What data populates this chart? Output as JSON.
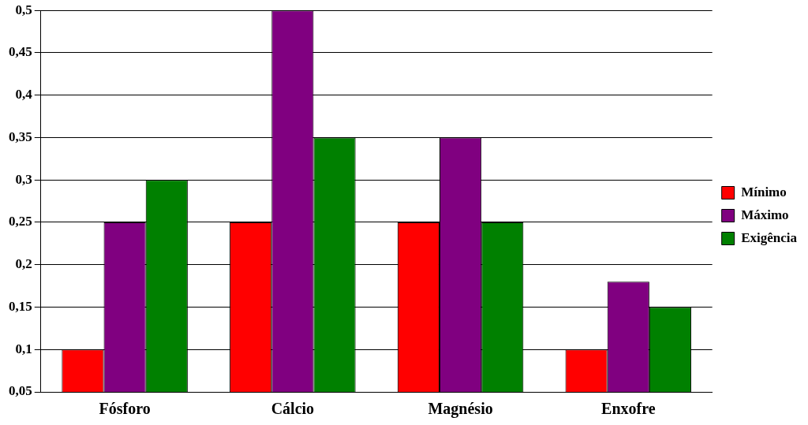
{
  "chart_data": {
    "type": "bar",
    "categories": [
      "Fósforo",
      "Cálcio",
      "Magnésio",
      "Enxofre"
    ],
    "series": [
      {
        "name": "Mínimo",
        "color": "#ff0000",
        "values": [
          0.1,
          0.25,
          0.25,
          0.1
        ]
      },
      {
        "name": "Máximo",
        "color": "#800080",
        "values": [
          0.25,
          0.5,
          0.35,
          0.18
        ]
      },
      {
        "name": "Exigência",
        "color": "#008000",
        "values": [
          0.3,
          0.35,
          0.25,
          0.15
        ]
      }
    ],
    "ylim": [
      0.05,
      0.5
    ],
    "yticks": [
      {
        "value": 0.05,
        "label": "0,05"
      },
      {
        "value": 0.1,
        "label": "0,1"
      },
      {
        "value": 0.15,
        "label": "0,15"
      },
      {
        "value": 0.2,
        "label": "0,2"
      },
      {
        "value": 0.25,
        "label": "0,25"
      },
      {
        "value": 0.3,
        "label": "0,3"
      },
      {
        "value": 0.35,
        "label": "0,35"
      },
      {
        "value": 0.4,
        "label": "0,4"
      },
      {
        "value": 0.45,
        "label": "0,45"
      },
      {
        "value": 0.5,
        "label": "0,5"
      }
    ],
    "grid": "y",
    "legend": "right"
  }
}
